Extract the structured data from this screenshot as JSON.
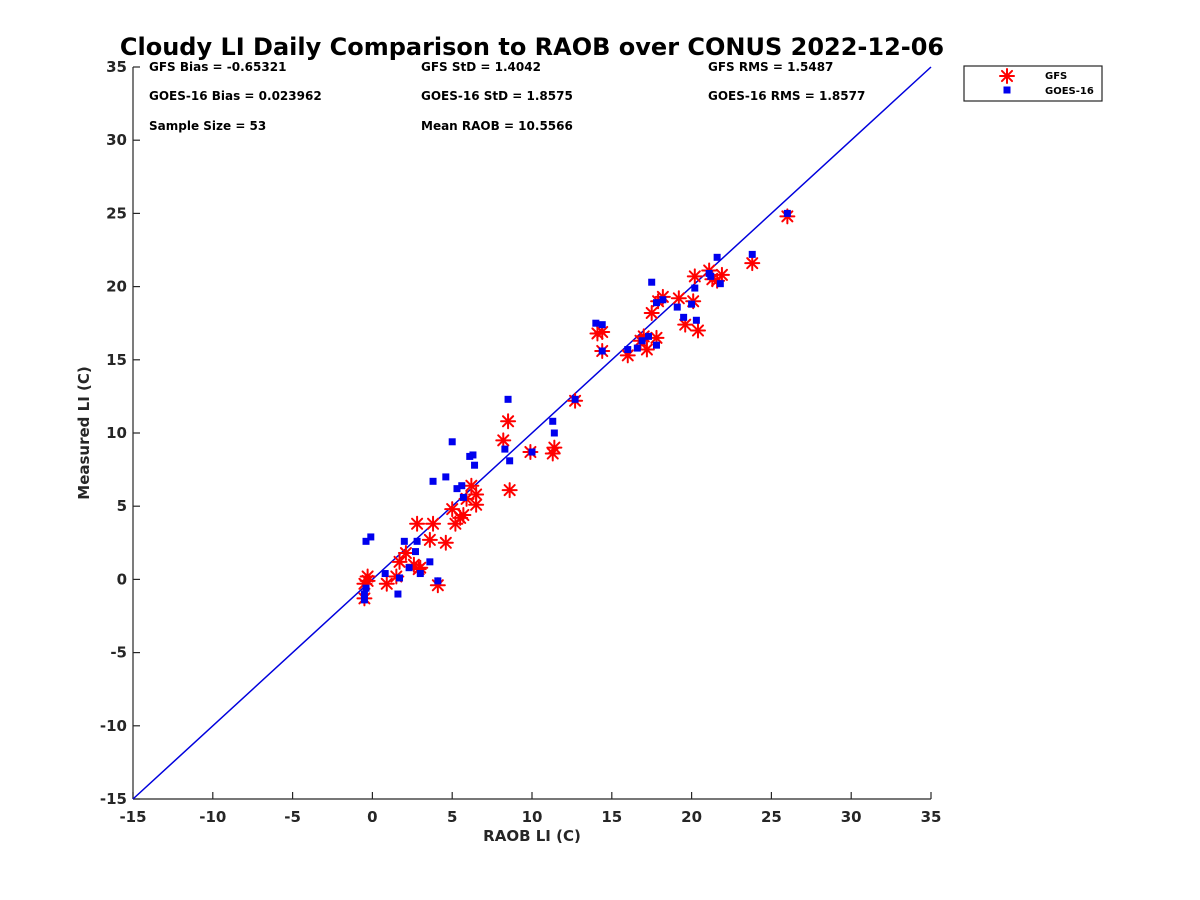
{
  "chart_data": {
    "type": "scatter",
    "title": "Cloudy LI Daily Comparison to RAOB over CONUS 2022-12-06",
    "xlabel": "RAOB LI (C)",
    "ylabel": "Measured LI (C)",
    "xlim": [
      -15,
      35
    ],
    "ylim": [
      -15,
      35
    ],
    "xticks": [
      "-15",
      "-10",
      "-5",
      "0",
      "5",
      "10",
      "15",
      "20",
      "25",
      "30",
      "35"
    ],
    "yticks": [
      "-15",
      "-10",
      "-5",
      "0",
      "5",
      "10",
      "15",
      "20",
      "25",
      "30",
      "35"
    ],
    "legend_position": "outside-top-right",
    "grid": false,
    "reference_line": {
      "x": [
        -15,
        35
      ],
      "y": [
        -15,
        35
      ],
      "color": "#0000dd"
    },
    "stats": [
      [
        "GFS Bias = -0.65321",
        "GFS StD = 1.4042",
        "GFS RMS = 1.5487"
      ],
      [
        "GOES-16 Bias = 0.023962",
        "GOES-16 StD = 1.8575",
        "GOES-16 RMS = 1.8577"
      ],
      [
        "Sample Size = 53",
        "Mean RAOB = 10.5566",
        ""
      ]
    ],
    "series": [
      {
        "name": "GFS",
        "marker": "asterisk",
        "color": "#ff0000",
        "points": [
          [
            -0.5,
            -1.3
          ],
          [
            -0.5,
            -0.3
          ],
          [
            -0.3,
            0.2
          ],
          [
            -0.3,
            -0.1
          ],
          [
            0.9,
            -0.3
          ],
          [
            1.5,
            0.2
          ],
          [
            1.7,
            1.2
          ],
          [
            2.1,
            1.8
          ],
          [
            2.6,
            1.0
          ],
          [
            2.8,
            3.8
          ],
          [
            2.9,
            0.7
          ],
          [
            3.0,
            0.8
          ],
          [
            3.6,
            2.7
          ],
          [
            3.8,
            3.8
          ],
          [
            4.1,
            -0.4
          ],
          [
            4.6,
            2.5
          ],
          [
            5.0,
            4.8
          ],
          [
            5.2,
            3.8
          ],
          [
            5.5,
            4.2
          ],
          [
            5.7,
            4.4
          ],
          [
            5.9,
            5.5
          ],
          [
            6.2,
            6.4
          ],
          [
            6.5,
            5.8
          ],
          [
            6.5,
            5.1
          ],
          [
            8.2,
            9.5
          ],
          [
            8.5,
            10.8
          ],
          [
            8.6,
            6.1
          ],
          [
            9.9,
            8.7
          ],
          [
            11.3,
            8.6
          ],
          [
            11.4,
            9.0
          ],
          [
            12.7,
            12.2
          ],
          [
            14.1,
            16.8
          ],
          [
            14.4,
            16.9
          ],
          [
            14.4,
            15.6
          ],
          [
            16.0,
            15.3
          ],
          [
            16.8,
            16.3
          ],
          [
            17.0,
            16.6
          ],
          [
            17.2,
            15.7
          ],
          [
            17.5,
            18.2
          ],
          [
            17.8,
            16.5
          ],
          [
            17.9,
            19.0
          ],
          [
            18.2,
            19.3
          ],
          [
            19.2,
            19.2
          ],
          [
            19.6,
            17.4
          ],
          [
            20.1,
            19.0
          ],
          [
            20.2,
            20.7
          ],
          [
            20.4,
            17.0
          ],
          [
            21.1,
            21.1
          ],
          [
            21.3,
            20.5
          ],
          [
            21.6,
            20.4
          ],
          [
            21.9,
            20.8
          ],
          [
            23.8,
            21.6
          ],
          [
            26.0,
            24.8
          ]
        ]
      },
      {
        "name": "GOES-16",
        "marker": "square",
        "color": "#0000ee",
        "points": [
          [
            -0.5,
            -1.4
          ],
          [
            -0.5,
            -1.0
          ],
          [
            -0.4,
            -0.6
          ],
          [
            -0.4,
            2.6
          ],
          [
            -0.1,
            2.9
          ],
          [
            0.8,
            0.4
          ],
          [
            1.6,
            -1.0
          ],
          [
            1.7,
            0.1
          ],
          [
            2.0,
            2.6
          ],
          [
            2.3,
            0.8
          ],
          [
            2.7,
            1.9
          ],
          [
            2.8,
            2.6
          ],
          [
            3.0,
            0.4
          ],
          [
            3.6,
            1.2
          ],
          [
            3.8,
            6.7
          ],
          [
            4.1,
            -0.1
          ],
          [
            4.6,
            7.0
          ],
          [
            5.0,
            9.4
          ],
          [
            5.3,
            6.2
          ],
          [
            5.6,
            6.4
          ],
          [
            5.7,
            5.6
          ],
          [
            6.1,
            8.4
          ],
          [
            6.3,
            8.5
          ],
          [
            6.4,
            7.8
          ],
          [
            8.3,
            8.9
          ],
          [
            8.5,
            12.3
          ],
          [
            8.6,
            8.1
          ],
          [
            10.0,
            8.7
          ],
          [
            11.3,
            10.8
          ],
          [
            11.4,
            10.0
          ],
          [
            12.7,
            12.3
          ],
          [
            14.0,
            17.5
          ],
          [
            14.4,
            17.4
          ],
          [
            14.4,
            15.6
          ],
          [
            16.0,
            15.7
          ],
          [
            16.6,
            15.8
          ],
          [
            16.9,
            16.3
          ],
          [
            17.3,
            16.6
          ],
          [
            17.5,
            20.3
          ],
          [
            17.8,
            16.0
          ],
          [
            17.8,
            18.9
          ],
          [
            18.2,
            19.1
          ],
          [
            19.1,
            18.6
          ],
          [
            19.5,
            17.9
          ],
          [
            20.0,
            18.8
          ],
          [
            20.2,
            19.9
          ],
          [
            20.3,
            17.7
          ],
          [
            21.1,
            20.9
          ],
          [
            21.2,
            20.7
          ],
          [
            21.6,
            22.0
          ],
          [
            21.8,
            20.2
          ],
          [
            23.8,
            22.2
          ],
          [
            26.0,
            25.0
          ]
        ]
      }
    ]
  }
}
